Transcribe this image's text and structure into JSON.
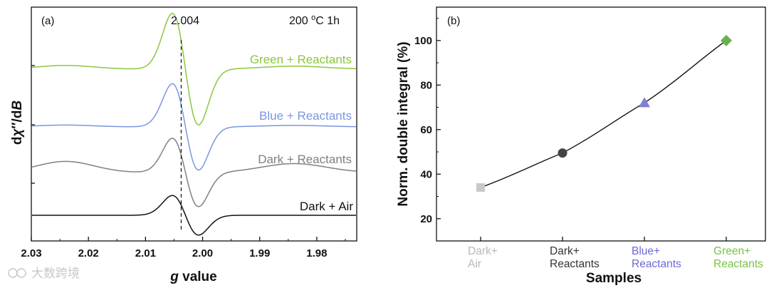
{
  "panel_a": {
    "tag": "(a)",
    "condition_prefix": "200 ",
    "condition_sup": "o",
    "condition_suffix": "C 1h",
    "marker_label": "2.004",
    "ylabel_parts": [
      "d",
      "χ",
      "″/d",
      "B"
    ],
    "xlabel_parts": [
      "g",
      " value"
    ]
  },
  "panel_b": {
    "tag": "(b)"
  },
  "watermark": "大数跨境",
  "chart_data": [
    {
      "type": "line",
      "panel": "a",
      "x_axis": {
        "ticks": [
          "2.03",
          "2.02",
          "2.01",
          "2.00",
          "1.99",
          "1.98"
        ],
        "range": [
          2.03,
          1.973
        ],
        "reversed": true
      },
      "y_axis": {
        "ticks_labeled": false
      },
      "xlabel": "g value",
      "ylabel": "dχ″/dB",
      "marker_line_g": 2.004,
      "center_g": 2.003,
      "series": [
        {
          "name": "Green + Reactants",
          "color": "#8cc63f",
          "offset": 3,
          "amplitude": 1.55,
          "hump": 0.1
        },
        {
          "name": "Blue + Reactants",
          "color": "#7b96e0",
          "offset": 2,
          "amplitude": 1.2,
          "hump": 0.05
        },
        {
          "name": "Dark + Reactants",
          "color": "#808080",
          "offset": 1,
          "amplitude": 0.95,
          "hump": 0.3
        },
        {
          "name": "Dark + Air",
          "color": "#111111",
          "offset": 0,
          "amplitude": 0.55,
          "hump": 0.0
        }
      ]
    },
    {
      "type": "line",
      "panel": "b",
      "ylabel": "Norm. double integral (%)",
      "xlabel": "Samples",
      "ylim": [
        10,
        115
      ],
      "y_ticks": [
        20,
        40,
        60,
        80,
        100
      ],
      "categories": [
        {
          "lines": [
            "Dark+",
            "Air"
          ],
          "color": "#b8b8b8"
        },
        {
          "lines": [
            "Dark+",
            "Reactants"
          ],
          "color": "#333333"
        },
        {
          "lines": [
            "Blue+",
            "Reactants"
          ],
          "color": "#6a6ad8"
        },
        {
          "lines": [
            "Green+",
            "Reactants"
          ],
          "color": "#7ac143"
        }
      ],
      "values": [
        34,
        49.5,
        72,
        100
      ],
      "markers": [
        {
          "shape": "square",
          "color": "#c8c8c8"
        },
        {
          "shape": "circle",
          "color": "#444444"
        },
        {
          "shape": "triangle",
          "color": "#7f7fd6"
        },
        {
          "shape": "diamond",
          "color": "#6ab04c"
        }
      ]
    }
  ]
}
